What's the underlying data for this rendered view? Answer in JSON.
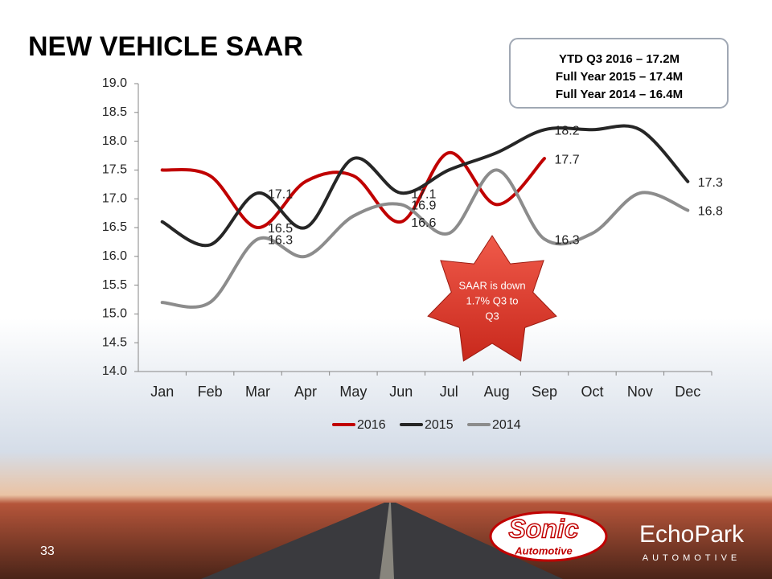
{
  "chart_data": {
    "type": "line",
    "title": "NEW VEHICLE SAAR",
    "categories": [
      "Jan",
      "Feb",
      "Mar",
      "Apr",
      "May",
      "Jun",
      "Jul",
      "Aug",
      "Sep",
      "Oct",
      "Nov",
      "Dec"
    ],
    "series": [
      {
        "name": "2016",
        "color": "#c00000",
        "values": [
          17.5,
          17.4,
          16.5,
          17.3,
          17.4,
          16.6,
          17.8,
          16.9,
          17.7,
          null,
          null,
          null
        ],
        "value_labels": [
          null,
          null,
          "16.5",
          null,
          null,
          "16.6",
          null,
          null,
          "17.7",
          null,
          null,
          null
        ]
      },
      {
        "name": "2015",
        "color": "#262626",
        "values": [
          16.6,
          16.2,
          17.1,
          16.5,
          17.7,
          17.1,
          17.5,
          17.8,
          18.2,
          18.2,
          18.2,
          17.3
        ],
        "value_labels": [
          null,
          null,
          "17.1",
          null,
          null,
          "17.1",
          null,
          null,
          "18.2",
          null,
          null,
          "17.3"
        ]
      },
      {
        "name": "2014",
        "color": "#8c8c8c",
        "values": [
          15.2,
          15.2,
          16.3,
          16.0,
          16.7,
          16.9,
          16.4,
          17.5,
          16.3,
          16.4,
          17.1,
          16.8
        ],
        "value_labels": [
          null,
          null,
          "16.3",
          null,
          null,
          "16.9",
          null,
          null,
          "16.3",
          null,
          null,
          "16.8"
        ]
      }
    ],
    "ylim": [
      14,
      19
    ],
    "yticks": [
      {
        "value": 14,
        "label": "14.0"
      },
      14.5,
      {
        "value": 15,
        "label": "15.0"
      },
      15.5,
      {
        "value": 16,
        "label": "16.0"
      },
      16.5,
      {
        "value": 17,
        "label": "17.0"
      },
      17.5,
      {
        "value": 18,
        "label": "18.0"
      },
      18.5,
      {
        "value": 19,
        "label": "19.0"
      }
    ],
    "grid": false,
    "legend": "bottom",
    "smooth": true
  },
  "summary_box": [
    "YTD Q3 2016 – 17.2M",
    "Full Year 2015 – 17.4M",
    "Full Year 2014 – 16.4M"
  ],
  "callout": [
    "SAAR is down",
    "1.7% Q3 to",
    "Q3"
  ],
  "page_number": "33",
  "logos": {
    "sonic": "Sonic",
    "sonic_sub": "Automotive",
    "echopark": "EchoPark",
    "echopark_sub": "AUTOMOTIVE"
  }
}
